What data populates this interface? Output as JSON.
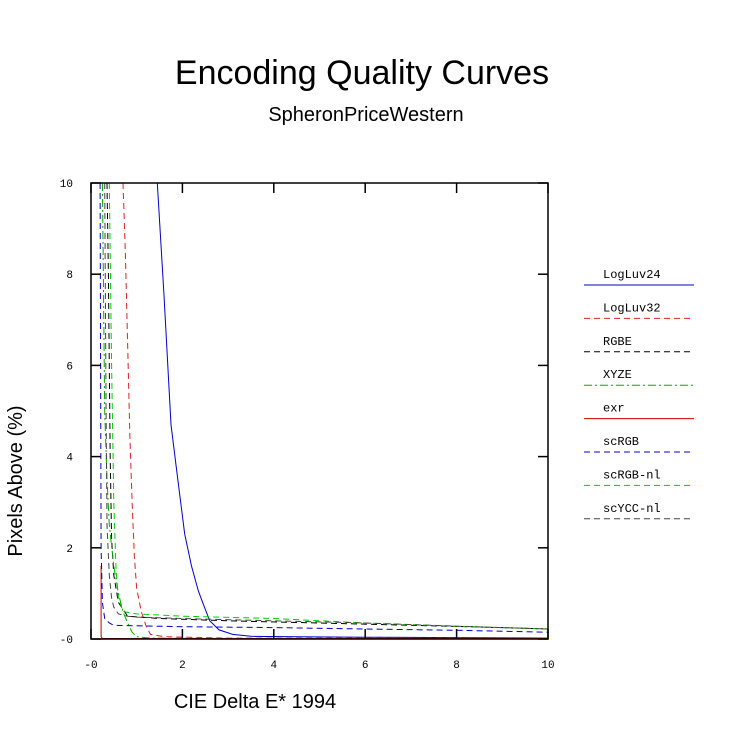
{
  "chart_data": {
    "type": "line",
    "title": "Encoding Quality Curves",
    "subtitle": "SpheronPriceWestern",
    "xlabel": "CIE Delta E* 1994",
    "ylabel": "Pixels Above (%)",
    "xlim": [
      0,
      10
    ],
    "ylim": [
      0,
      10
    ],
    "xticks": [
      0,
      2,
      4,
      6,
      8,
      10
    ],
    "yticks": [
      0,
      2,
      4,
      6,
      8,
      10
    ],
    "xtick_labels": [
      "-0",
      "2",
      "4",
      "6",
      "8",
      "10"
    ],
    "ytick_labels": [
      "-0",
      "2",
      "4",
      "6",
      "8",
      "10"
    ],
    "legend_position": "right",
    "series": [
      {
        "name": "LogLuv24",
        "color": "#0000cc",
        "dash": "solid",
        "x": [
          1.45,
          1.6,
          1.75,
          1.9,
          2.05,
          2.2,
          2.35,
          2.5,
          2.6,
          2.8,
          3.1,
          3.5,
          4.5,
          6.0,
          8.0,
          10.0
        ],
        "y": [
          10.0,
          7.5,
          4.7,
          3.5,
          2.3,
          1.6,
          1.05,
          0.65,
          0.4,
          0.2,
          0.1,
          0.06,
          0.05,
          0.04,
          0.03,
          0.02
        ]
      },
      {
        "name": "LogLuv32",
        "color": "#dd2222",
        "dash": "dashed",
        "x": [
          0.7,
          0.75,
          0.8,
          0.85,
          0.9,
          0.95,
          1.0,
          1.1,
          1.2,
          1.3,
          1.6,
          3.0,
          6.0,
          10.0
        ],
        "y": [
          10.0,
          8.5,
          6.5,
          4.5,
          3.0,
          1.8,
          1.1,
          0.6,
          0.3,
          0.1,
          0.05,
          0.02,
          0.02,
          0.01
        ]
      },
      {
        "name": "RGBE",
        "color": "#000000",
        "dash": "dashed",
        "x": [
          0.35,
          0.38,
          0.4,
          0.42,
          0.45,
          0.5,
          0.6,
          0.8,
          1.5,
          3.0,
          5.0,
          7.0,
          9.0,
          10.0
        ],
        "y": [
          10.0,
          8.0,
          6.0,
          4.0,
          2.2,
          1.4,
          0.8,
          0.5,
          0.45,
          0.4,
          0.35,
          0.3,
          0.25,
          0.22
        ]
      },
      {
        "name": "XYZE",
        "color": "#00aa00",
        "dash": "dashdot",
        "x": [
          0.25,
          0.28,
          0.3,
          0.35,
          0.4,
          0.5,
          0.6,
          0.7,
          0.8,
          0.9,
          1.0,
          1.3,
          3.0,
          10.0
        ],
        "y": [
          10.0,
          7.0,
          5.0,
          3.5,
          2.5,
          1.6,
          1.0,
          0.6,
          0.35,
          0.15,
          0.05,
          0.02,
          0.01,
          0.01
        ]
      },
      {
        "name": "exr",
        "color": "#cc0000",
        "dash": "solid",
        "x": [
          0.22,
          0.22,
          0.25,
          0.5,
          1.0,
          2.0,
          5.0,
          10.0
        ],
        "y": [
          1.6,
          0.05,
          0.01,
          0.01,
          0.01,
          0.01,
          0.01,
          0.01
        ]
      },
      {
        "name": "scRGB",
        "color": "#0000cc",
        "dash": "dashed",
        "x": [
          0.2,
          0.22,
          0.25,
          0.3,
          0.4,
          0.5,
          1.0,
          2.0,
          4.0,
          6.0,
          8.0,
          10.0
        ],
        "y": [
          10.0,
          2.0,
          0.8,
          0.45,
          0.35,
          0.3,
          0.29,
          0.27,
          0.25,
          0.22,
          0.19,
          0.15
        ]
      },
      {
        "name": "scRGB-nl",
        "color": "#00cc00",
        "dash": "dashed",
        "x": [
          0.4,
          0.45,
          0.5,
          0.55,
          0.6,
          0.7,
          1.0,
          2.0,
          4.0,
          6.0,
          8.0,
          10.0
        ],
        "y": [
          10.0,
          6.0,
          3.0,
          1.5,
          0.9,
          0.6,
          0.55,
          0.5,
          0.45,
          0.35,
          0.28,
          0.22
        ]
      },
      {
        "name": "scYCC-nl",
        "color": "#444444",
        "dash": "dashed",
        "x": [
          0.3,
          0.33,
          0.35,
          0.4,
          0.45,
          0.5,
          0.6,
          0.8,
          1.0,
          2.0,
          4.0,
          6.0,
          8.0,
          10.0
        ],
        "y": [
          10.0,
          5.0,
          2.5,
          1.4,
          0.9,
          0.7,
          0.55,
          0.5,
          0.48,
          0.45,
          0.4,
          0.35,
          0.28,
          0.22
        ]
      }
    ]
  }
}
